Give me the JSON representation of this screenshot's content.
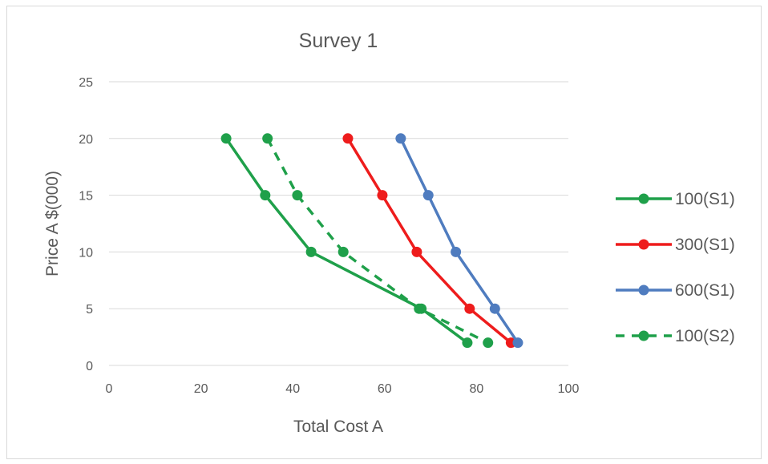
{
  "chart_data": {
    "type": "line",
    "title": "Survey 1",
    "xlabel": "Total Cost A",
    "ylabel": "Price A $(000)",
    "xlim": [
      0,
      100
    ],
    "ylim": [
      0,
      25
    ],
    "x_ticks": [
      0,
      20,
      40,
      60,
      80,
      100
    ],
    "y_ticks": [
      0,
      5,
      10,
      15,
      20,
      25
    ],
    "grid": "horizontal",
    "legend_position": "right",
    "series": [
      {
        "name": "100(S1)",
        "color": "#1fa04a",
        "dashed": false,
        "points": [
          [
            25.5,
            20
          ],
          [
            34,
            15
          ],
          [
            44,
            10
          ],
          [
            68,
            5
          ],
          [
            78,
            2
          ]
        ]
      },
      {
        "name": "300(S1)",
        "color": "#ee1c1c",
        "dashed": false,
        "points": [
          [
            52,
            20
          ],
          [
            59.5,
            15
          ],
          [
            67,
            10
          ],
          [
            78.5,
            5
          ],
          [
            87.5,
            2
          ]
        ]
      },
      {
        "name": "600(S1)",
        "color": "#4f7cbf",
        "dashed": false,
        "points": [
          [
            63.5,
            20
          ],
          [
            69.5,
            15
          ],
          [
            75.5,
            10
          ],
          [
            84,
            5
          ],
          [
            89,
            2
          ]
        ]
      },
      {
        "name": "100(S2)",
        "color": "#1fa04a",
        "dashed": true,
        "points": [
          [
            34.5,
            20
          ],
          [
            41,
            15
          ],
          [
            51,
            10
          ],
          [
            67.5,
            5
          ],
          [
            82.5,
            2
          ]
        ]
      }
    ]
  }
}
